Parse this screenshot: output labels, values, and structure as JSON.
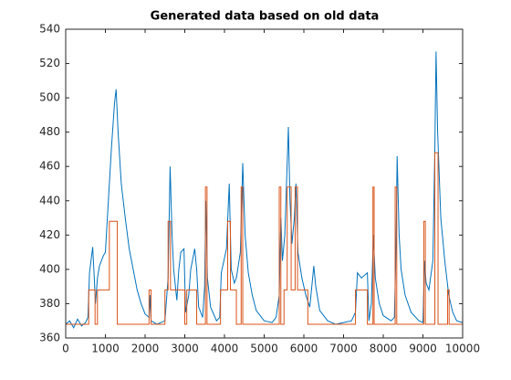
{
  "chart_data": {
    "type": "line",
    "title": "Generated data based on old data",
    "xlim": [
      0,
      10000
    ],
    "xticks": [
      0,
      1000,
      2000,
      3000,
      4000,
      5000,
      6000,
      7000,
      8000,
      9000,
      10000
    ],
    "ylim": [
      360,
      540
    ],
    "yticks": [
      360,
      380,
      400,
      420,
      440,
      460,
      480,
      500,
      520,
      540
    ],
    "grid": false,
    "series": [
      {
        "color": "#0072BD",
        "x": [
          0,
          100,
          200,
          300,
          400,
          500,
          560,
          600,
          680,
          720,
          750,
          800,
          850,
          950,
          1000,
          1050,
          1150,
          1230,
          1270,
          1320,
          1400,
          1500,
          1600,
          1700,
          1800,
          1900,
          2000,
          2100,
          2120,
          2150,
          2300,
          2400,
          2500,
          2580,
          2630,
          2680,
          2720,
          2800,
          2850,
          2900,
          2980,
          3020,
          3100,
          3150,
          3250,
          3300,
          3350,
          3450,
          3500,
          3530,
          3570,
          3650,
          3800,
          3880,
          3920,
          4050,
          4120,
          4170,
          4250,
          4300,
          4400,
          4460,
          4520,
          4600,
          4700,
          4800,
          5000,
          5200,
          5300,
          5380,
          5420,
          5460,
          5520,
          5610,
          5650,
          5700,
          5760,
          5800,
          5850,
          5950,
          6050,
          6150,
          6250,
          6300,
          6400,
          6600,
          6800,
          7000,
          7200,
          7300,
          7350,
          7450,
          7600,
          7640,
          7700,
          7750,
          7800,
          7900,
          8000,
          8200,
          8280,
          8320,
          8350,
          8400,
          8450,
          8550,
          8700,
          8900,
          9000,
          9040,
          9080,
          9150,
          9250,
          9300,
          9330,
          9370,
          9450,
          9550,
          9650,
          9750,
          9850,
          10000
        ],
        "values": [
          368,
          370,
          366,
          371,
          367,
          369,
          372,
          398,
          413,
          395,
          380,
          395,
          402,
          408,
          410,
          430,
          470,
          497,
          505,
          480,
          450,
          430,
          412,
          400,
          388,
          380,
          374,
          372,
          385,
          370,
          368,
          369,
          370,
          395,
          460,
          420,
          400,
          382,
          400,
          410,
          412,
          375,
          385,
          400,
          412,
          400,
          378,
          372,
          390,
          440,
          395,
          378,
          370,
          372,
          398,
          412,
          450,
          400,
          392,
          395,
          410,
          462,
          420,
          398,
          385,
          376,
          370,
          369,
          372,
          385,
          430,
          405,
          420,
          483,
          440,
          415,
          430,
          450,
          410,
          395,
          385,
          378,
          402,
          390,
          376,
          370,
          368,
          369,
          370,
          375,
          398,
          395,
          398,
          370,
          380,
          420,
          395,
          380,
          373,
          370,
          372,
          410,
          466,
          420,
          400,
          385,
          375,
          370,
          369,
          405,
          392,
          388,
          405,
          470,
          527,
          480,
          430,
          405,
          385,
          375,
          370,
          369
        ]
      },
      {
        "color": "#D95319",
        "x": [
          0,
          580,
          580,
          740,
          740,
          800,
          800,
          1100,
          1100,
          1300,
          1300,
          2100,
          2100,
          2150,
          2150,
          2500,
          2500,
          2580,
          2580,
          2640,
          2640,
          3000,
          3000,
          3050,
          3050,
          3300,
          3300,
          3520,
          3520,
          3560,
          3560,
          3900,
          3900,
          4080,
          4080,
          4150,
          4150,
          4300,
          4300,
          4420,
          4420,
          4460,
          4460,
          5380,
          5380,
          5420,
          5420,
          5500,
          5500,
          5580,
          5580,
          5680,
          5680,
          5780,
          5780,
          5840,
          5840,
          6100,
          6100,
          7300,
          7300,
          7600,
          7600,
          7740,
          7740,
          7770,
          7770,
          8300,
          8300,
          8340,
          8340,
          9020,
          9020,
          9060,
          9060,
          9300,
          9300,
          9380,
          9380,
          9620,
          9620,
          9660,
          9660,
          10000
        ],
        "values": [
          368,
          368,
          388,
          388,
          368,
          368,
          388,
          388,
          428,
          428,
          368,
          368,
          388,
          388,
          368,
          368,
          388,
          388,
          428,
          428,
          388,
          388,
          368,
          368,
          388,
          388,
          368,
          368,
          448,
          448,
          368,
          368,
          388,
          388,
          428,
          428,
          388,
          388,
          368,
          368,
          448,
          448,
          368,
          368,
          448,
          448,
          368,
          368,
          388,
          388,
          448,
          448,
          388,
          388,
          448,
          448,
          388,
          388,
          368,
          368,
          388,
          388,
          368,
          368,
          448,
          448,
          368,
          368,
          448,
          448,
          368,
          368,
          428,
          428,
          368,
          368,
          468,
          468,
          368,
          368,
          388,
          388,
          368,
          368
        ]
      }
    ]
  }
}
